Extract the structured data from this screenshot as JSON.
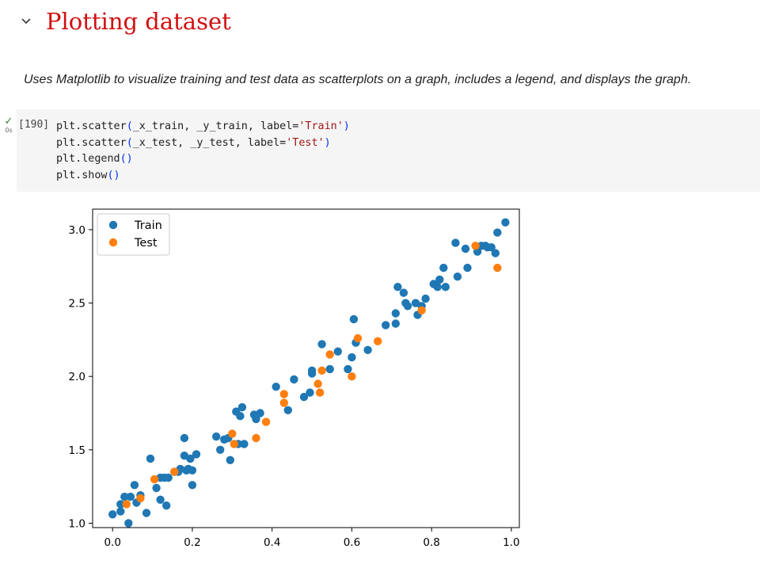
{
  "section": {
    "title": "Plotting dataset",
    "toggle_icon": "chevron-down-icon"
  },
  "description": "Uses Matplotlib to visualize training and test data as scatterplots on a graph, includes a legend, and displays the graph.",
  "cell": {
    "execution_count": "[190]",
    "status_icon": "check-icon",
    "exec_time": "0s",
    "code_lines": [
      [
        {
          "t": "plt.scatter"
        },
        {
          "t": "(",
          "c": "paren"
        },
        {
          "t": "_x_train, _y_train, label="
        },
        {
          "t": "'Train'",
          "c": "str"
        },
        {
          "t": ")",
          "c": "paren"
        }
      ],
      [
        {
          "t": "plt.scatter"
        },
        {
          "t": "(",
          "c": "paren"
        },
        {
          "t": "_x_test, _y_test, label="
        },
        {
          "t": "'Test'",
          "c": "str"
        },
        {
          "t": ")",
          "c": "paren"
        }
      ],
      [
        {
          "t": "plt.legend"
        },
        {
          "t": "()",
          "c": "paren"
        }
      ],
      [
        {
          "t": "plt.show"
        },
        {
          "t": "()",
          "c": "paren"
        }
      ]
    ]
  },
  "chart_data": {
    "type": "scatter",
    "title": "",
    "xlabel": "",
    "ylabel": "",
    "xlim": [
      -0.05,
      1.02
    ],
    "ylim": [
      0.97,
      3.14
    ],
    "xticks": [
      0.0,
      0.2,
      0.4,
      0.6,
      0.8,
      1.0
    ],
    "xtick_labels": [
      "0.0",
      "0.2",
      "0.4",
      "0.6",
      "0.8",
      "1.0"
    ],
    "yticks": [
      1.0,
      1.5,
      2.0,
      2.5,
      3.0
    ],
    "ytick_labels": [
      "1.0",
      "1.5",
      "2.0",
      "2.5",
      "3.0"
    ],
    "grid": false,
    "legend": "top-left",
    "series": [
      {
        "name": "Train",
        "color": "#1f77b4",
        "x": [
          0.0,
          0.02,
          0.02,
          0.03,
          0.04,
          0.045,
          0.055,
          0.06,
          0.07,
          0.085,
          0.095,
          0.11,
          0.12,
          0.12,
          0.13,
          0.135,
          0.14,
          0.155,
          0.165,
          0.17,
          0.18,
          0.18,
          0.185,
          0.19,
          0.195,
          0.2,
          0.2,
          0.21,
          0.26,
          0.27,
          0.28,
          0.29,
          0.295,
          0.31,
          0.315,
          0.32,
          0.325,
          0.33,
          0.355,
          0.36,
          0.37,
          0.41,
          0.44,
          0.455,
          0.48,
          0.495,
          0.5,
          0.5,
          0.525,
          0.545,
          0.565,
          0.59,
          0.6,
          0.605,
          0.61,
          0.64,
          0.685,
          0.71,
          0.71,
          0.715,
          0.73,
          0.735,
          0.74,
          0.76,
          0.765,
          0.775,
          0.785,
          0.805,
          0.815,
          0.82,
          0.83,
          0.835,
          0.86,
          0.865,
          0.885,
          0.89,
          0.915,
          0.925,
          0.935,
          0.94,
          0.95,
          0.96,
          0.965,
          0.985
        ],
        "y": [
          1.06,
          1.13,
          1.08,
          1.18,
          1.0,
          1.18,
          1.26,
          1.14,
          1.19,
          1.07,
          1.44,
          1.24,
          1.31,
          1.16,
          1.31,
          1.12,
          1.31,
          1.35,
          1.35,
          1.37,
          1.46,
          1.58,
          1.36,
          1.37,
          1.44,
          1.36,
          1.26,
          1.47,
          1.59,
          1.5,
          1.57,
          1.58,
          1.43,
          1.76,
          1.54,
          1.73,
          1.79,
          1.54,
          1.74,
          1.71,
          1.75,
          1.93,
          1.77,
          1.98,
          1.86,
          1.89,
          2.02,
          2.04,
          2.22,
          2.05,
          2.17,
          2.05,
          2.13,
          2.39,
          2.23,
          2.18,
          2.35,
          2.36,
          2.43,
          2.61,
          2.57,
          2.5,
          2.48,
          2.5,
          2.42,
          2.48,
          2.53,
          2.63,
          2.61,
          2.66,
          2.74,
          2.61,
          2.91,
          2.68,
          2.87,
          2.74,
          2.85,
          2.89,
          2.89,
          2.88,
          2.88,
          2.84,
          2.98,
          3.05
        ]
      },
      {
        "name": "Test",
        "color": "#ff7f0e",
        "x": [
          0.035,
          0.07,
          0.105,
          0.155,
          0.3,
          0.305,
          0.36,
          0.385,
          0.43,
          0.43,
          0.515,
          0.52,
          0.525,
          0.545,
          0.6,
          0.615,
          0.665,
          0.775,
          0.91,
          0.965
        ],
        "y": [
          1.13,
          1.17,
          1.3,
          1.35,
          1.61,
          1.54,
          1.58,
          1.69,
          1.88,
          1.82,
          1.95,
          1.89,
          2.04,
          2.15,
          2.0,
          2.26,
          2.24,
          2.45,
          2.89,
          2.74
        ]
      }
    ]
  }
}
